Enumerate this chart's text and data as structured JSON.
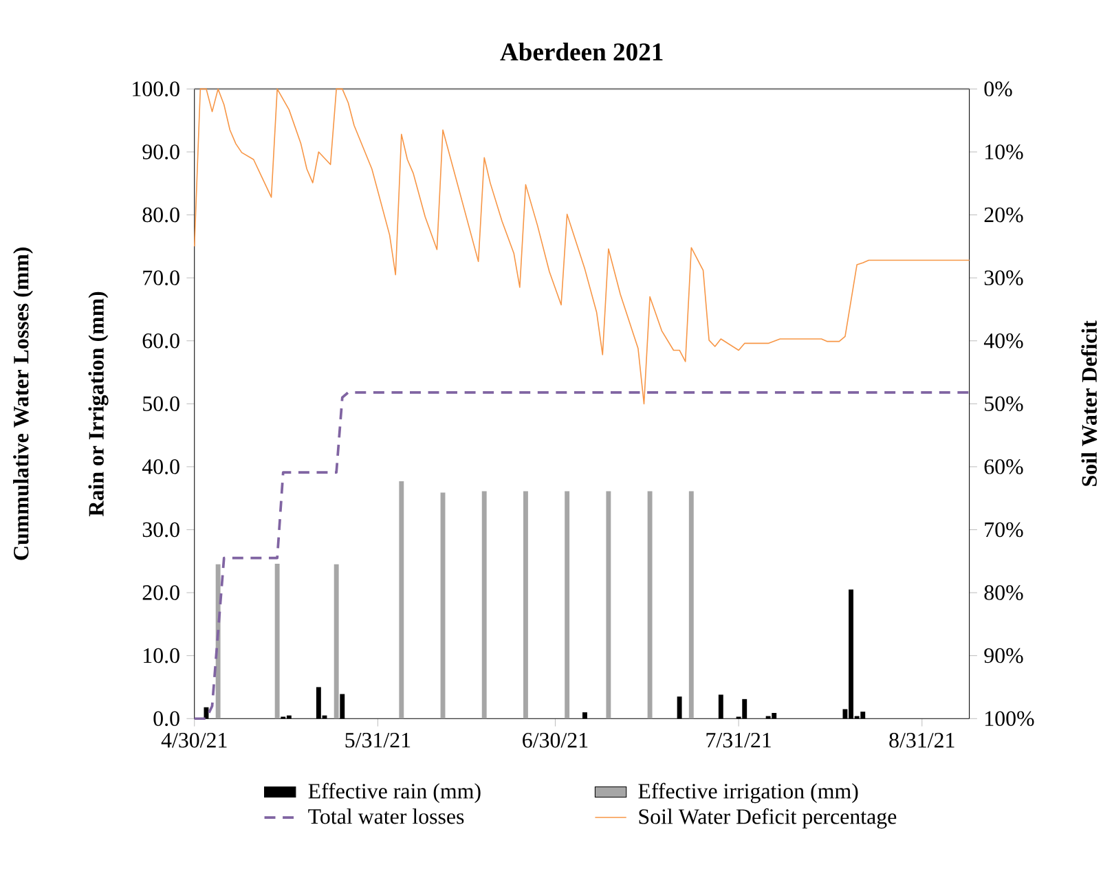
{
  "chart_data": {
    "type": "bar",
    "title": "Aberdeen 2021",
    "ylabel": "Cummulative Water Losses (mm)",
    "y2label": "Soil Water Deficit",
    "annotations": [
      "Rain or Irrigation (mm)"
    ],
    "xlim": [
      "2021-04-30",
      "2021-09-08"
    ],
    "xticks": [
      {
        "value": "2021-04-30",
        "label": "4/30/21"
      },
      {
        "value": "2021-05-31",
        "label": "5/31/21"
      },
      {
        "value": "2021-06-30",
        "label": "6/30/21"
      },
      {
        "value": "2021-07-31",
        "label": "7/31/21"
      },
      {
        "value": "2021-08-31",
        "label": "8/31/21"
      }
    ],
    "ylim": [
      0,
      100
    ],
    "yticks": [
      {
        "value": 0,
        "label": "0.0"
      },
      {
        "value": 10,
        "label": "10.0"
      },
      {
        "value": 20,
        "label": "20.0"
      },
      {
        "value": 30,
        "label": "30.0"
      },
      {
        "value": 40,
        "label": "40.0"
      },
      {
        "value": 50,
        "label": "50.0"
      },
      {
        "value": 60,
        "label": "60.0"
      },
      {
        "value": 70,
        "label": "70.0"
      },
      {
        "value": 80,
        "label": "80.0"
      },
      {
        "value": 90,
        "label": "90.0"
      },
      {
        "value": 100,
        "label": "100.0"
      }
    ],
    "y2lim": [
      100,
      0
    ],
    "y2ticks": [
      {
        "value": 0,
        "label": "0%"
      },
      {
        "value": 10,
        "label": "10%"
      },
      {
        "value": 20,
        "label": "20%"
      },
      {
        "value": 30,
        "label": "30%"
      },
      {
        "value": 40,
        "label": "40%"
      },
      {
        "value": 50,
        "label": "50%"
      },
      {
        "value": 60,
        "label": "60%"
      },
      {
        "value": 70,
        "label": "70%"
      },
      {
        "value": 80,
        "label": "80%"
      },
      {
        "value": 90,
        "label": "90%"
      },
      {
        "value": 100,
        "label": "100%"
      }
    ],
    "legend": "bottom",
    "marker": "none",
    "series": [
      {
        "name": "Effective rain (mm)",
        "color": "#000000",
        "x": [
          "2021-05-02",
          "2021-05-15",
          "2021-05-16",
          "2021-05-21",
          "2021-05-22",
          "2021-05-25",
          "2021-07-05",
          "2021-07-21",
          "2021-07-28",
          "2021-07-31",
          "2021-08-01",
          "2021-08-05",
          "2021-08-06",
          "2021-08-18",
          "2021-08-19",
          "2021-08-20",
          "2021-08-21"
        ],
        "values": [
          1.8,
          0.3,
          0.5,
          5.0,
          0.5,
          3.9,
          1.0,
          3.5,
          3.8,
          0.3,
          3.1,
          0.4,
          0.9,
          1.5,
          20.5,
          0.4,
          1.1
        ]
      },
      {
        "name": "Effective irrigation (mm)",
        "color": "#a6a6a6",
        "x": [
          "2021-05-04",
          "2021-05-14",
          "2021-05-24",
          "2021-06-04",
          "2021-06-11",
          "2021-06-18",
          "2021-06-25",
          "2021-07-02",
          "2021-07-09",
          "2021-07-16",
          "2021-07-23"
        ],
        "values": [
          24.5,
          24.6,
          24.5,
          37.7,
          35.9,
          36.1,
          36.1,
          36.1,
          36.1,
          36.1,
          36.1
        ]
      },
      {
        "name": "Total water losses",
        "type": "line",
        "color": "#8064a2",
        "line_style": "dashed",
        "x": [
          "2021-04-30",
          "2021-05-02",
          "2021-05-03",
          "2021-05-05",
          "2021-05-14",
          "2021-05-15",
          "2021-05-24",
          "2021-05-25",
          "2021-05-26",
          "2021-09-08"
        ],
        "values": [
          0,
          0,
          2,
          25.5,
          25.5,
          39.1,
          39.1,
          51.0,
          51.8,
          51.8
        ]
      },
      {
        "name": "Soil Water Deficit percentage",
        "type": "line",
        "axis": "y2",
        "color": "#f79646",
        "line_style": "solid",
        "x": [
          "2021-04-30",
          "2021-05-01",
          "2021-05-02",
          "2021-05-03",
          "2021-05-04",
          "2021-05-05",
          "2021-05-06",
          "2021-05-07",
          "2021-05-08",
          "2021-05-10",
          "2021-05-13",
          "2021-05-14",
          "2021-05-16",
          "2021-05-18",
          "2021-05-19",
          "2021-05-20",
          "2021-05-21",
          "2021-05-23",
          "2021-05-24",
          "2021-05-25",
          "2021-05-26",
          "2021-05-27",
          "2021-05-30",
          "2021-06-02",
          "2021-06-03",
          "2021-06-04",
          "2021-06-05",
          "2021-06-06",
          "2021-06-08",
          "2021-06-10",
          "2021-06-11",
          "2021-06-17",
          "2021-06-18",
          "2021-06-19",
          "2021-06-21",
          "2021-06-23",
          "2021-06-24",
          "2021-06-25",
          "2021-06-27",
          "2021-06-29",
          "2021-07-01",
          "2021-07-02",
          "2021-07-05",
          "2021-07-07",
          "2021-07-08",
          "2021-07-09",
          "2021-07-11",
          "2021-07-14",
          "2021-07-15",
          "2021-07-16",
          "2021-07-18",
          "2021-07-20",
          "2021-07-21",
          "2021-07-22",
          "2021-07-23",
          "2021-07-25",
          "2021-07-26",
          "2021-07-27",
          "2021-07-28",
          "2021-07-31",
          "2021-08-01",
          "2021-08-05",
          "2021-08-07",
          "2021-08-14",
          "2021-08-15",
          "2021-08-17",
          "2021-08-18",
          "2021-08-20",
          "2021-08-21",
          "2021-08-22",
          "2021-09-08"
        ],
        "values": [
          25.0,
          0,
          0,
          3.6,
          0,
          2.5,
          6.5,
          8.7,
          10.1,
          11.2,
          17.2,
          0,
          3.3,
          8.7,
          12.7,
          14.9,
          10.0,
          12.0,
          0,
          0,
          2.2,
          5.8,
          12.7,
          23.2,
          29.5,
          7.2,
          11.2,
          13.4,
          20.3,
          25.5,
          6.5,
          27.4,
          10.9,
          14.9,
          21.0,
          26.1,
          31.5,
          15.2,
          21.7,
          29.0,
          34.3,
          19.9,
          28.6,
          35.5,
          42.2,
          25.4,
          32.6,
          41.2,
          50.0,
          33.0,
          38.4,
          41.5,
          41.5,
          43.3,
          25.2,
          28.8,
          39.9,
          40.9,
          39.7,
          41.5,
          40.4,
          40.4,
          39.7,
          39.7,
          40.1,
          40.1,
          39.3,
          27.9,
          27.6,
          27.2,
          27.2
        ]
      }
    ]
  }
}
